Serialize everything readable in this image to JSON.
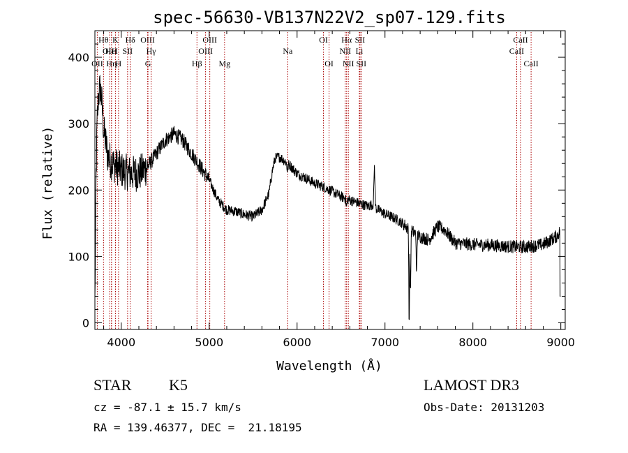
{
  "chart_data": {
    "type": "line",
    "title": "spec-56630-VB137N22V2_sp07-129.fits",
    "xlabel": "Wavelength (Å)",
    "ylabel": "Flux (relative)",
    "xlim": [
      3700,
      9050
    ],
    "ylim": [
      -10,
      440
    ],
    "xticks": [
      4000,
      5000,
      6000,
      7000,
      8000,
      9000
    ],
    "yticks": [
      0,
      100,
      200,
      300,
      400
    ],
    "line_color": "#000000",
    "marker_color": "#aa0000",
    "lines": [
      {
        "label": "OII",
        "x": 3727,
        "row": 3
      },
      {
        "label": "Hθ",
        "x": 3798,
        "row": 1
      },
      {
        "label": "OIII",
        "x": 3869,
        "row": 2
      },
      {
        "label": "K",
        "x": 3934,
        "row": 1
      },
      {
        "label": "Hη",
        "x": 3889,
        "row": 3
      },
      {
        "label": "HeI",
        "x": 3889,
        "row": 2
      },
      {
        "label": "H",
        "x": 3969,
        "row": 3
      },
      {
        "label": "SII",
        "x": 4072,
        "row": 2
      },
      {
        "label": "Hδ",
        "x": 4102,
        "row": 1
      },
      {
        "label": "OIII",
        "x": 4300,
        "row": 1
      },
      {
        "label": "Hγ",
        "x": 4340,
        "row": 2
      },
      {
        "label": "G",
        "x": 4304,
        "row": 3
      },
      {
        "label": "Hβ",
        "x": 4861,
        "row": 3
      },
      {
        "label": "OIII",
        "x": 5007,
        "row": 1
      },
      {
        "label": "OIII",
        "x": 4959,
        "row": 2
      },
      {
        "label": "Mg",
        "x": 5175,
        "row": 3
      },
      {
        "label": "Na",
        "x": 5894,
        "row": 2
      },
      {
        "label": "OI",
        "x": 6300,
        "row": 1
      },
      {
        "label": "OI",
        "x": 6364,
        "row": 3
      },
      {
        "label": "Hα",
        "x": 6563,
        "row": 1
      },
      {
        "label": "NII",
        "x": 6548,
        "row": 2
      },
      {
        "label": "NII",
        "x": 6583,
        "row": 3
      },
      {
        "label": "SII",
        "x": 6716,
        "row": 1
      },
      {
        "label": "Li",
        "x": 6708,
        "row": 2
      },
      {
        "label": "SII",
        "x": 6731,
        "row": 3
      },
      {
        "label": "CaII",
        "x": 8542,
        "row": 1
      },
      {
        "label": "CaII",
        "x": 8498,
        "row": 2
      },
      {
        "label": "CaII",
        "x": 8662,
        "row": 3
      }
    ],
    "continuum": [
      [
        3700,
        30
      ],
      [
        3712,
        200
      ],
      [
        3725,
        300
      ],
      [
        3740,
        340
      ],
      [
        3760,
        355
      ],
      [
        3780,
        330
      ],
      [
        3800,
        290
      ],
      [
        3850,
        250
      ],
      [
        3900,
        240
      ],
      [
        4000,
        230
      ],
      [
        4100,
        225
      ],
      [
        4200,
        225
      ],
      [
        4300,
        235
      ],
      [
        4400,
        255
      ],
      [
        4500,
        275
      ],
      [
        4600,
        285
      ],
      [
        4700,
        275
      ],
      [
        4800,
        255
      ],
      [
        4900,
        235
      ],
      [
        5000,
        215
      ],
      [
        5100,
        185
      ],
      [
        5200,
        170
      ],
      [
        5300,
        168
      ],
      [
        5400,
        163
      ],
      [
        5500,
        160
      ],
      [
        5600,
        170
      ],
      [
        5680,
        195
      ],
      [
        5720,
        230
      ],
      [
        5750,
        248
      ],
      [
        5800,
        250
      ],
      [
        5900,
        240
      ],
      [
        6000,
        225
      ],
      [
        6100,
        218
      ],
      [
        6200,
        210
      ],
      [
        6300,
        205
      ],
      [
        6400,
        198
      ],
      [
        6500,
        190
      ],
      [
        6600,
        185
      ],
      [
        6700,
        180
      ],
      [
        6800,
        176
      ],
      [
        6860,
        178
      ],
      [
        6900,
        172
      ],
      [
        7000,
        164
      ],
      [
        7100,
        158
      ],
      [
        7200,
        150
      ],
      [
        7280,
        140
      ],
      [
        7400,
        130
      ],
      [
        7500,
        125
      ],
      [
        7600,
        145
      ],
      [
        7680,
        140
      ],
      [
        7800,
        120
      ],
      [
        8000,
        118
      ],
      [
        8200,
        117
      ],
      [
        8400,
        115
      ],
      [
        8600,
        114
      ],
      [
        8800,
        118
      ],
      [
        8950,
        130
      ],
      [
        9000,
        140
      ]
    ],
    "features": [
      {
        "x": 6880,
        "width": 8,
        "depth": -60
      },
      {
        "x": 7275,
        "width": 6,
        "depth": 140
      },
      {
        "x": 7290,
        "width": 5,
        "depth": 100
      },
      {
        "x": 7360,
        "width": 6,
        "depth": 60
      },
      {
        "x": 5890,
        "width": 10,
        "depth": 10
      },
      {
        "x": 6563,
        "width": 8,
        "depth": 12
      }
    ]
  },
  "info": {
    "object_class": "STAR",
    "subclass": "K5",
    "survey": "LAMOST DR3",
    "redshift": "cz = -87.1 ± 15.7 km/s",
    "obs_date": "Obs-Date: 20131203",
    "coords": "RA = 139.46377, DEC =  21.18195"
  }
}
